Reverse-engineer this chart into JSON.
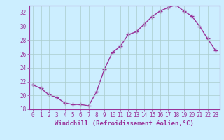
{
  "x": [
    0,
    1,
    2,
    3,
    4,
    5,
    6,
    7,
    8,
    9,
    10,
    11,
    12,
    13,
    14,
    15,
    16,
    17,
    18,
    19,
    20,
    21,
    22,
    23
  ],
  "y": [
    21.5,
    21.0,
    20.1,
    19.7,
    18.9,
    18.7,
    18.7,
    18.5,
    20.5,
    23.8,
    26.2,
    27.1,
    28.8,
    29.2,
    30.3,
    31.4,
    32.2,
    32.7,
    33.1,
    32.2,
    31.5,
    30.0,
    28.2,
    26.5
  ],
  "line_color": "#993399",
  "marker": "+",
  "marker_size": 4,
  "line_width": 1.0,
  "bg_color": "#cceeff",
  "grid_color": "#aacccc",
  "xlabel": "Windchill (Refroidissement éolien,°C)",
  "ylabel": "",
  "ylim": [
    18,
    33
  ],
  "xlim": [
    -0.5,
    23.5
  ],
  "yticks": [
    18,
    20,
    22,
    24,
    26,
    28,
    30,
    32
  ],
  "xticks": [
    0,
    1,
    2,
    3,
    4,
    5,
    6,
    7,
    8,
    9,
    10,
    11,
    12,
    13,
    14,
    15,
    16,
    17,
    18,
    19,
    20,
    21,
    22,
    23
  ],
  "tick_color": "#993399",
  "tick_label_fontsize": 5.5,
  "xlabel_fontsize": 6.5,
  "xlabel_fontweight": "bold",
  "markeredgewidth": 1.0
}
